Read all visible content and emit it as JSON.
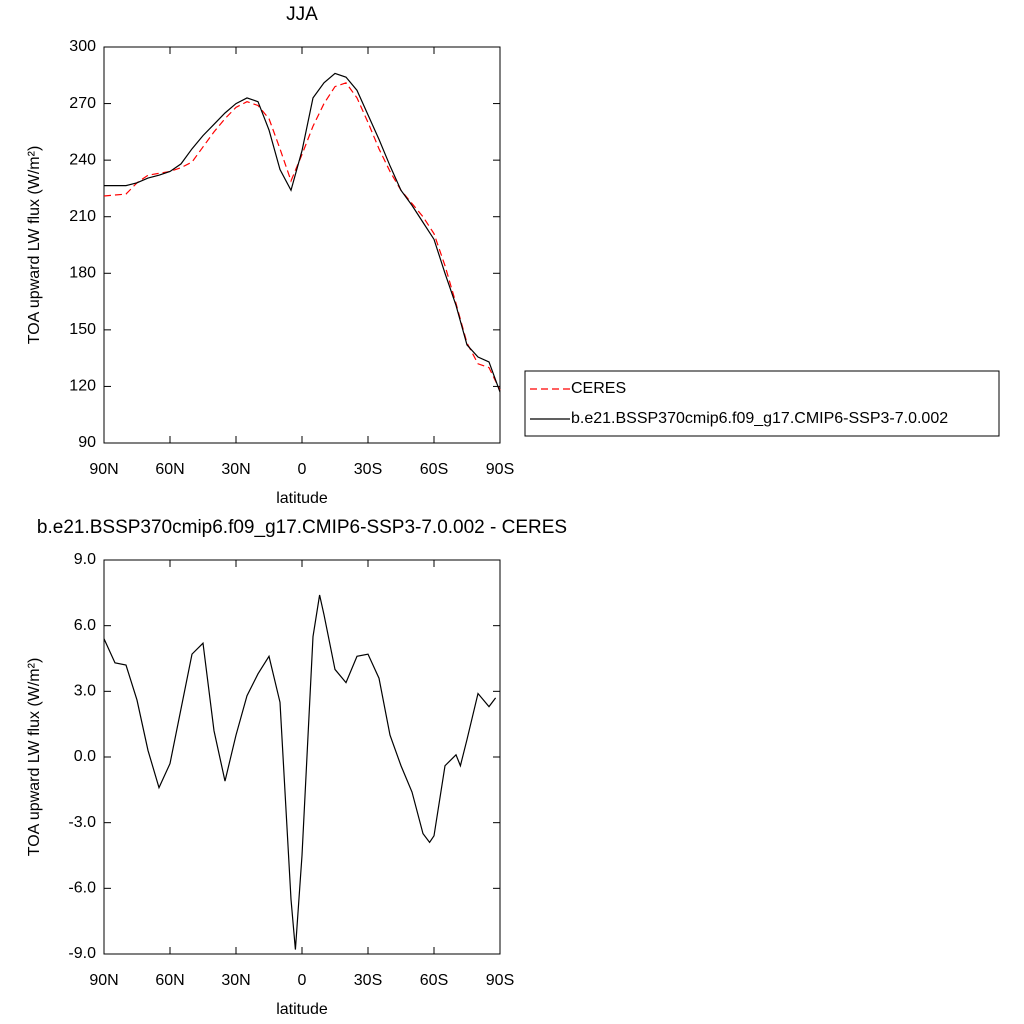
{
  "chart_data": [
    {
      "type": "line",
      "title": "JJA",
      "xlabel": "latitude",
      "ylabel": "TOA upward LW flux (W/m²)",
      "x": [
        90,
        85,
        80,
        75,
        70,
        65,
        60,
        55,
        50,
        45,
        40,
        35,
        30,
        25,
        20,
        15,
        10,
        5,
        0,
        -5,
        -10,
        -15,
        -20,
        -25,
        -30,
        -35,
        -40,
        -45,
        -50,
        -55,
        -60,
        -65,
        -70,
        -75,
        -80,
        -85,
        -90
      ],
      "series": [
        {
          "name": "CERES",
          "color": "#ff0000",
          "style": "dashed",
          "values": [
            221,
            221.5,
            222,
            228,
            232,
            233,
            234,
            236,
            239,
            247,
            255,
            262,
            268,
            271,
            269,
            262,
            246,
            229,
            243,
            258,
            270,
            279,
            281,
            273,
            260,
            246,
            234,
            224,
            217,
            210,
            201,
            184,
            164,
            143,
            132,
            130,
            118
          ]
        },
        {
          "name": "b.e21.BSSP370cmip6.f09_g17.CMIP6-SSP3-7.0.002",
          "color": "#000000",
          "style": "solid",
          "values": [
            226.5,
            226.5,
            226.5,
            228,
            230.5,
            232,
            234,
            238,
            246,
            253,
            259,
            265,
            270,
            273,
            271,
            256,
            235,
            224,
            245,
            273,
            281,
            286,
            284,
            277,
            264,
            251,
            237,
            224,
            216,
            207,
            198,
            180,
            163,
            142,
            135.6,
            133,
            117
          ]
        }
      ],
      "xlim": [
        90,
        -90
      ],
      "xticks": [
        {
          "value": 90,
          "label": "90N"
        },
        {
          "value": 60,
          "label": "60N"
        },
        {
          "value": 30,
          "label": "30N"
        },
        0,
        {
          "value": -30,
          "label": "30S"
        },
        {
          "value": -60,
          "label": "60S"
        },
        {
          "value": -90,
          "label": "90S"
        }
      ],
      "ylim": [
        90,
        300
      ],
      "yticks": [
        90,
        120,
        150,
        180,
        210,
        240,
        270,
        300
      ],
      "legend_position": "right"
    },
    {
      "type": "line",
      "title": "b.e21.BSSP370cmip6.f09_g17.CMIP6-SSP3-7.0.002 - CERES",
      "xlabel": "latitude",
      "ylabel": "TOA upward LW flux (W/m²)",
      "x": [
        90,
        85,
        80,
        75,
        70,
        65,
        60,
        55,
        50,
        45,
        40,
        35,
        30,
        25,
        20,
        15,
        10,
        5,
        3,
        0,
        -5,
        -8,
        -10,
        -15,
        -20,
        -25,
        -30,
        -35,
        -40,
        -45,
        -50,
        -55,
        -58,
        -60,
        -65,
        -70,
        -72,
        -75,
        -80,
        -85,
        -88
      ],
      "series": [
        {
          "color": "#000000",
          "style": "solid",
          "values": [
            5.4,
            4.3,
            4.2,
            2.6,
            0.3,
            -1.4,
            -0.3,
            2.2,
            4.7,
            5.2,
            1.2,
            -1.1,
            1.0,
            2.8,
            3.8,
            4.6,
            2.5,
            -6.5,
            -8.8,
            -4.5,
            5.5,
            7.4,
            6.5,
            4.0,
            3.4,
            4.6,
            4.7,
            3.6,
            1.0,
            -0.4,
            -1.6,
            -3.5,
            -3.9,
            -3.6,
            -0.4,
            0.1,
            -0.4,
            0.8,
            2.9,
            2.3,
            2.7
          ]
        }
      ],
      "xlim": [
        90,
        -90
      ],
      "xticks": [
        {
          "value": 90,
          "label": "90N"
        },
        {
          "value": 60,
          "label": "60N"
        },
        {
          "value": 30,
          "label": "30N"
        },
        0,
        {
          "value": -30,
          "label": "30S"
        },
        {
          "value": -60,
          "label": "60S"
        },
        {
          "value": -90,
          "label": "90S"
        }
      ],
      "ylim": [
        -9,
        9
      ],
      "yticks": [
        {
          "value": -9,
          "label": "-9.0"
        },
        {
          "value": -6,
          "label": "-6.0"
        },
        {
          "value": -3,
          "label": "-3.0"
        },
        {
          "value": 0,
          "label": "0.0"
        },
        {
          "value": 3,
          "label": "3.0"
        },
        {
          "value": 6,
          "label": "6.0"
        },
        {
          "value": 9,
          "label": "9.0"
        }
      ]
    }
  ]
}
